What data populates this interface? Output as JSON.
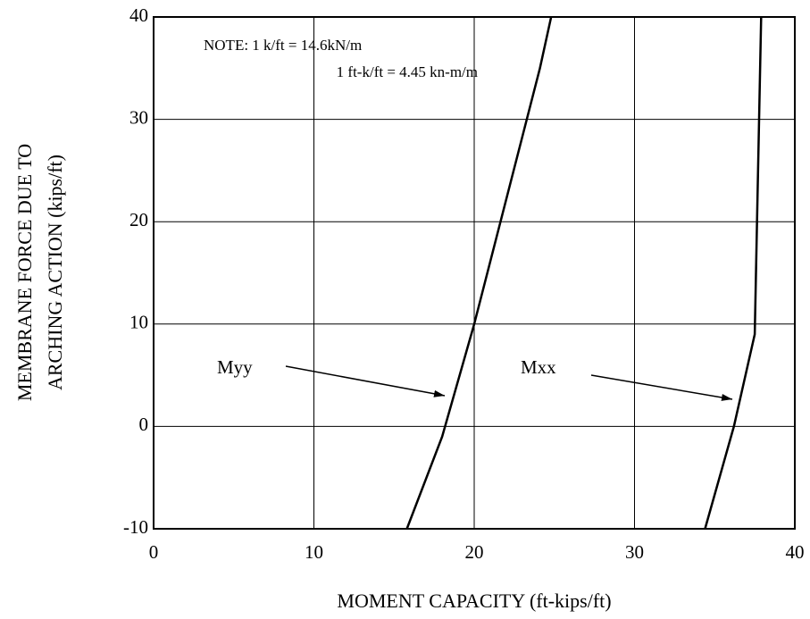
{
  "chart_data": {
    "type": "line",
    "xlabel": "MOMENT CAPACITY (ft-kips/ft)",
    "ylabel": [
      "MEMBRANE FORCE DUE TO",
      "ARCHING ACTION (kips/ft)"
    ],
    "notes": [
      "NOTE:  1 k/ft = 14.6kN/m",
      "1 ft-k/ft = 4.45 kn-m/m"
    ],
    "series": [
      {
        "name": "Myy",
        "color": "#000000",
        "x": [
          15.8,
          18.0,
          20.0,
          24.1,
          24.8
        ],
        "values": [
          -10,
          -1,
          10,
          35,
          40
        ]
      },
      {
        "name": "Mxx",
        "color": "#000000",
        "x": [
          34.4,
          36.2,
          37.5,
          37.9
        ],
        "values": [
          -10,
          0,
          9,
          40
        ]
      }
    ],
    "xlim": [
      0,
      40
    ],
    "xticks": [
      0,
      10,
      20,
      30,
      40
    ],
    "ylim": [
      -10,
      40
    ],
    "yticks": [
      -10,
      0,
      10,
      20,
      30,
      40
    ],
    "grid": true
  }
}
